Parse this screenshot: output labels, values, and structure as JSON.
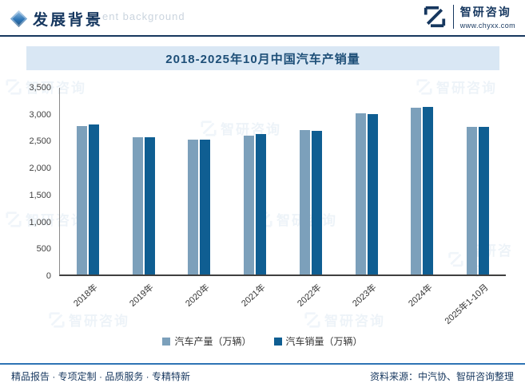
{
  "header": {
    "title": "发展背景",
    "watermark_text": "ent background",
    "logo": {
      "name": "智研咨询",
      "url": "www.chyxx.com"
    }
  },
  "chart_data": {
    "type": "bar",
    "title": "2018-2025年10月中国汽车产销量",
    "categories": [
      "2018年",
      "2019年",
      "2020年",
      "2021年",
      "2022年",
      "2023年",
      "2024年",
      "2025年1-10月"
    ],
    "series": [
      {
        "name": "汽车产量（万辆）",
        "color": "#7ca0bb",
        "values": [
          2781,
          2572,
          2523,
          2608,
          2702,
          3016,
          3128,
          2769
        ]
      },
      {
        "name": "汽车销量（万辆）",
        "color": "#0f5e92",
        "values": [
          2808,
          2577,
          2531,
          2628,
          2686,
          3009,
          3144,
          2769
        ]
      }
    ],
    "ylim": [
      0,
      3500
    ],
    "ytick_labels": [
      "0",
      "500",
      "1,000",
      "1,500",
      "2,000",
      "2,500",
      "3,000",
      "3,500"
    ],
    "grid": false,
    "legend_position": "bottom"
  },
  "footer": {
    "left": "精品报告 · 专项定制 · 品质服务 · 专精特新",
    "source": "资料来源：中汽协、智研咨询整理"
  },
  "watermark": {
    "text": "智研咨询"
  }
}
